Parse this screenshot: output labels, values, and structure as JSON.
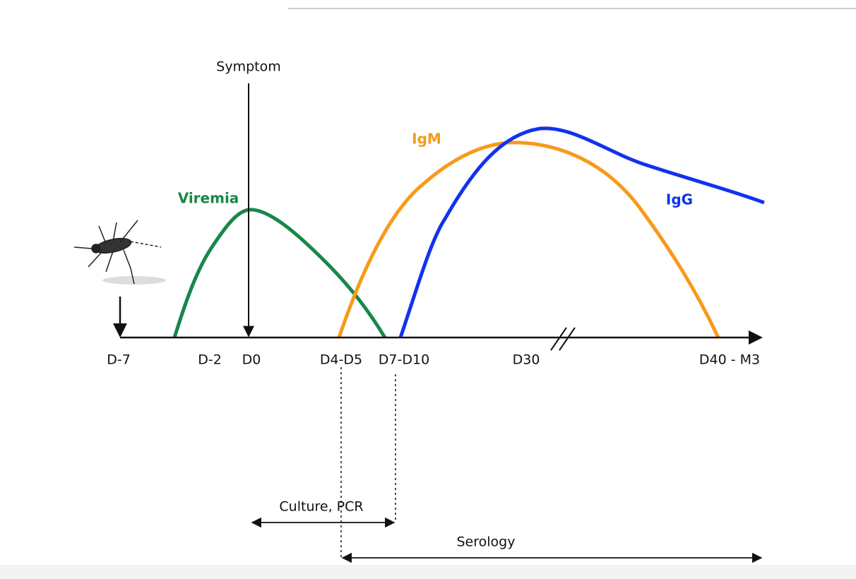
{
  "symptom": "Symptom",
  "curves": [
    {
      "label": "Viremia"
    },
    {
      "label": "IgM"
    },
    {
      "label": "IgG"
    }
  ],
  "timeline": {
    "labels": [
      "D-7",
      "D-2",
      "D0",
      "D4-D5",
      "D7-D10",
      "D30",
      "D40 - M3"
    ]
  },
  "methods": [
    {
      "label": "Culture, PCR"
    },
    {
      "label": "Serology"
    }
  ]
}
